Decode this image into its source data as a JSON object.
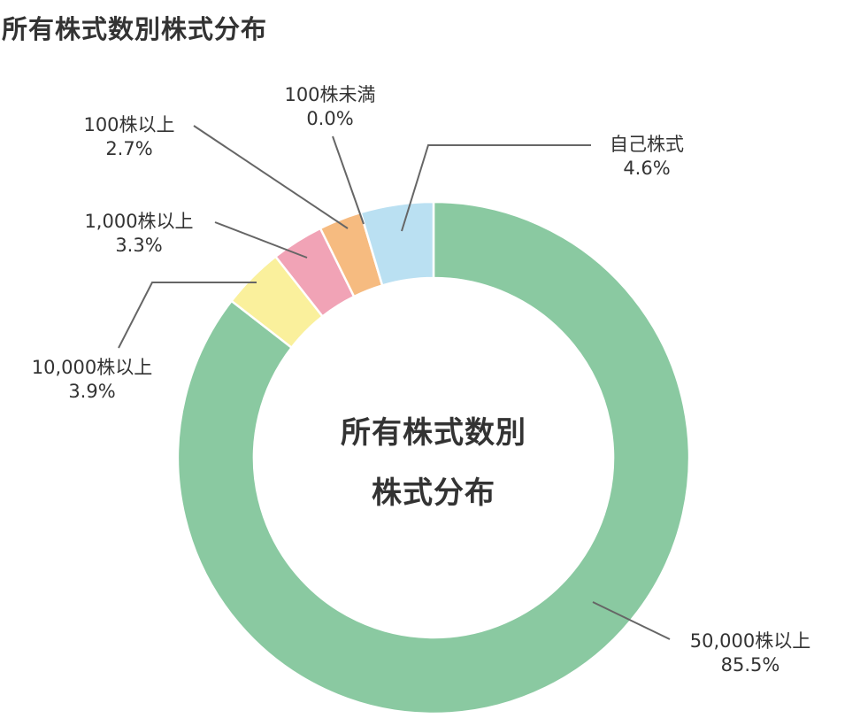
{
  "page": {
    "title": "所有株式数別株式分布"
  },
  "chart": {
    "center_line1": "所有株式数別",
    "center_line2": "株式分布"
  },
  "labels": [
    {
      "name": "50,000株以上",
      "value": "85.5%"
    },
    {
      "name": "10,000株以上",
      "value": "3.9%"
    },
    {
      "name": "1,000株以上",
      "value": "3.3%"
    },
    {
      "name": "100株以上",
      "value": "2.7%"
    },
    {
      "name": "100株未満",
      "value": "0.0%"
    },
    {
      "name": "自己株式",
      "value": "4.6%"
    }
  ],
  "chart_data": {
    "type": "pie",
    "subtype": "donut",
    "title": "所有株式数別株式分布",
    "center_text": "所有株式数別 株式分布",
    "categories": [
      "50,000株以上",
      "10,000株以上",
      "1,000株以上",
      "100株以上",
      "100株未満",
      "自己株式"
    ],
    "values": [
      85.5,
      3.9,
      3.3,
      2.7,
      0.0,
      4.6
    ],
    "unit": "%",
    "colors": [
      "#8ac9a1",
      "#faf09c",
      "#f1a3b6",
      "#f6bb80",
      "#f6bb80",
      "#bae0f2"
    ],
    "start_angle": "12 o'clock, clockwise",
    "legend": "none (callout labels)"
  }
}
